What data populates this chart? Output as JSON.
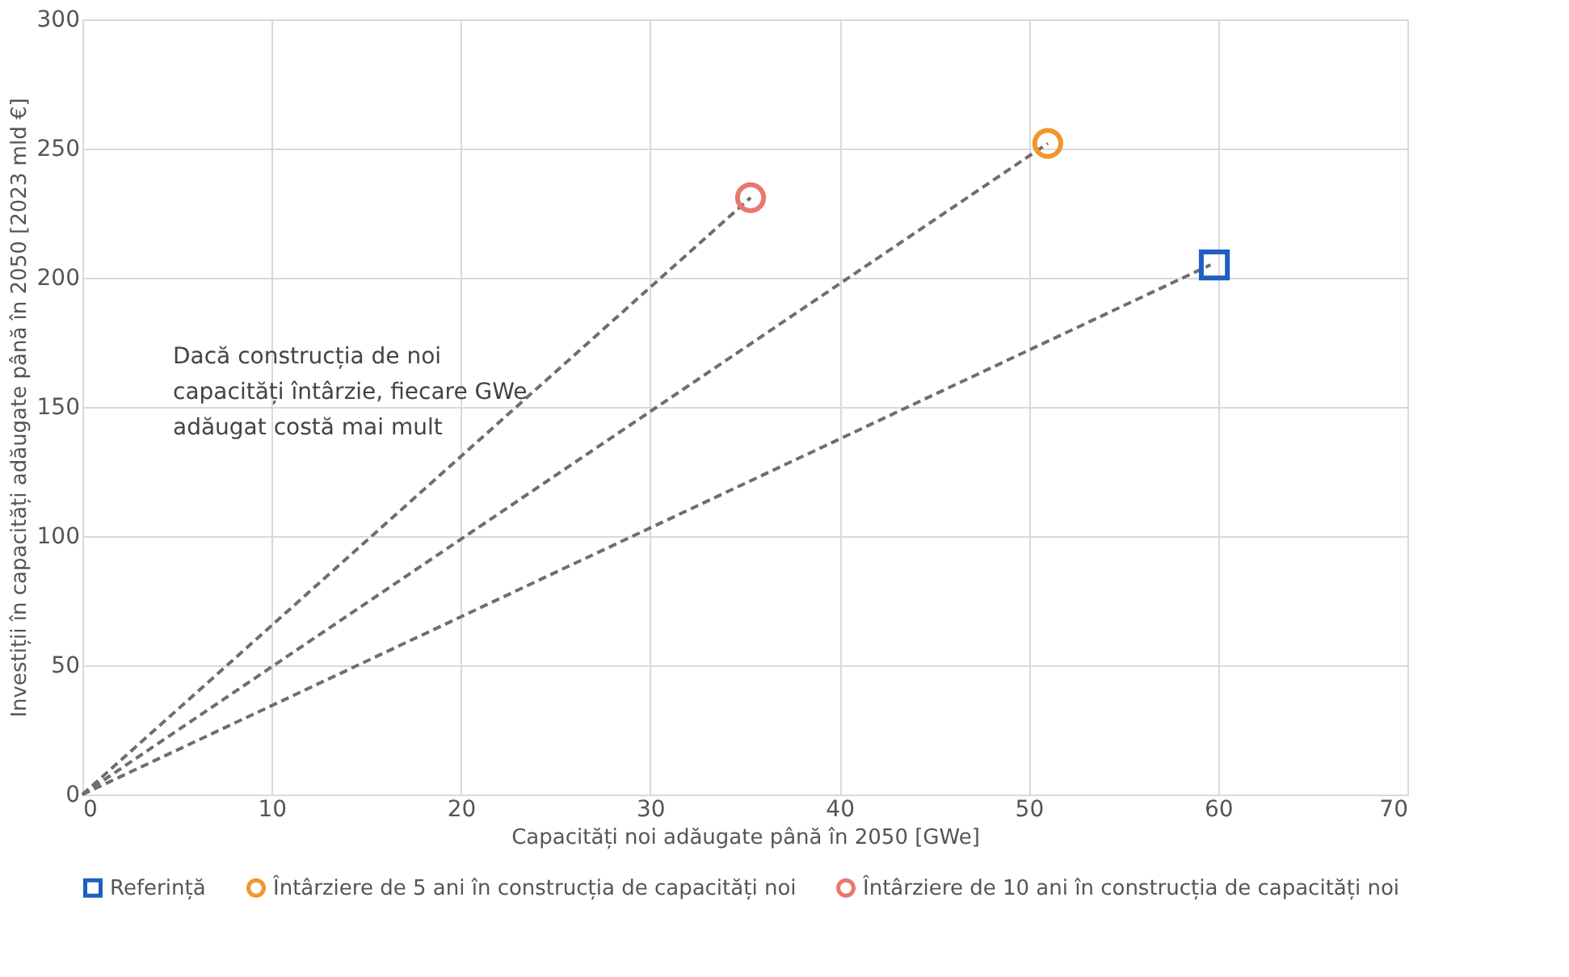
{
  "chart_data": {
    "type": "scatter",
    "xlabel": "Capacități noi adăugate până în 2050 [GWe]",
    "ylabel": "Investiții în capacități adăugate până în 2050 [2023 mld €]",
    "xlim": [
      0,
      70
    ],
    "xticks": [
      0,
      10,
      20,
      30,
      40,
      50,
      60,
      70
    ],
    "ylim": [
      0,
      300
    ],
    "yticks": [
      0,
      50,
      100,
      150,
      200,
      250,
      300
    ],
    "grid": true,
    "legend": "bottom",
    "annotations": [
      "Dacă construcția de noi capacități întârzie, fiecare GWe adăugat costă mai mult"
    ],
    "series": [
      {
        "type": "line",
        "color": "#6e6e6e",
        "line_style": "dashed",
        "x": [
          0,
          59.6
        ],
        "values": [
          0,
          205
        ]
      },
      {
        "type": "line",
        "color": "#6e6e6e",
        "line_style": "dashed",
        "x": [
          0,
          51.0
        ],
        "values": [
          0,
          252
        ]
      },
      {
        "type": "line",
        "color": "#6e6e6e",
        "line_style": "dashed",
        "x": [
          0,
          35.3
        ],
        "values": [
          0,
          231
        ]
      },
      {
        "name": "Referință",
        "color": "#1f5fbf",
        "marker": "square",
        "x": [
          59.8
        ],
        "values": [
          205
        ]
      },
      {
        "name": "Întârziere de 5 ani în construcția de capacități noi",
        "color": "#f0962e",
        "marker": "circle",
        "x": [
          51.0
        ],
        "values": [
          252
        ]
      },
      {
        "name": "Întârziere de 10 ani în construcția de capacități noi",
        "color": "#e8786e",
        "marker": "circle",
        "x": [
          35.3
        ],
        "values": [
          231
        ]
      }
    ]
  }
}
